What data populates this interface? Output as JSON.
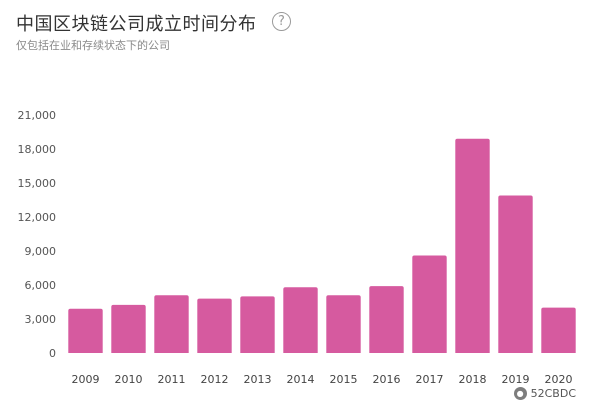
{
  "header": {
    "title": "中国区块链公司成立时间分布",
    "subtitle": "仅包括在业和存续状态下的公司"
  },
  "watermark": {
    "text": "52CBDC",
    "icon": "wechat-icon"
  },
  "help_icon": "question-circle-icon",
  "chart_data": {
    "type": "bar",
    "title": "中国区块链公司成立时间分布",
    "subtitle": "仅包括在业和存续状态下的公司",
    "xlabel": "",
    "ylabel": "",
    "categories": [
      "2009",
      "2010",
      "2011",
      "2012",
      "2013",
      "2014",
      "2015",
      "2016",
      "2017",
      "2018",
      "2019",
      "2020"
    ],
    "values": [
      3900,
      4250,
      5100,
      4800,
      5000,
      5800,
      5100,
      5900,
      8600,
      18900,
      13900,
      4000
    ],
    "ylim": [
      0,
      21000
    ],
    "yticks": [
      0,
      3000,
      6000,
      9000,
      12000,
      15000,
      18000,
      21000
    ],
    "ytick_labels": [
      "0",
      "3,000",
      "6,000",
      "9,000",
      "12,000",
      "15,000",
      "18,000",
      "21,000"
    ],
    "grid": false,
    "bar_color": "#d65a9f",
    "legend": "none"
  }
}
